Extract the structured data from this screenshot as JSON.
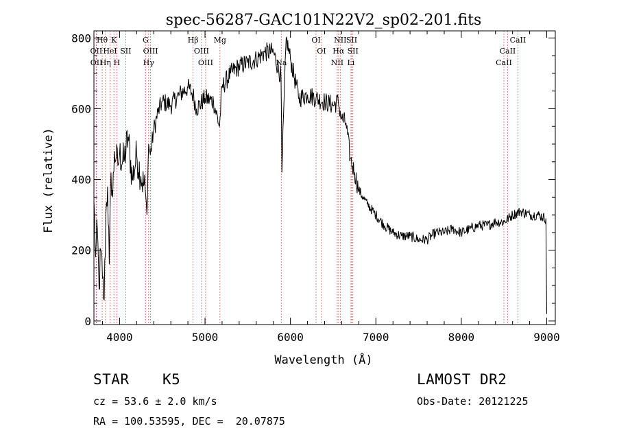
{
  "chart_data": {
    "type": "line",
    "title": "spec-56287-GAC101N22V2_sp02-201.fits",
    "xlabel": "Wavelength (Å)",
    "ylabel": "Flux (relative)",
    "xlim": [
      3700,
      9100
    ],
    "ylim": [
      -10,
      820
    ],
    "xticks": [
      4000,
      5000,
      6000,
      7000,
      8000,
      9000
    ],
    "yticks": [
      0,
      200,
      400,
      600,
      800
    ],
    "xtick_labels": [
      "4000",
      "5000",
      "6000",
      "7000",
      "8000",
      "9000"
    ],
    "ytick_labels": [
      "0",
      "200",
      "400",
      "600",
      "800"
    ],
    "grid": false,
    "series_color": "#000000",
    "line_marker_color": "#c83232",
    "spectrum": {
      "x": [
        3700,
        3720,
        3740,
        3760,
        3780,
        3800,
        3820,
        3840,
        3860,
        3880,
        3900,
        3920,
        3940,
        3960,
        3980,
        4000,
        4050,
        4100,
        4150,
        4200,
        4250,
        4300,
        4320,
        4340,
        4360,
        4400,
        4450,
        4500,
        4600,
        4700,
        4800,
        4860,
        4900,
        5000,
        5100,
        5170,
        5200,
        5300,
        5400,
        5500,
        5600,
        5700,
        5800,
        5890,
        5900,
        5950,
        6000,
        6100,
        6200,
        6300,
        6400,
        6500,
        6560,
        6600,
        6650,
        6700,
        6750,
        6800,
        6850,
        6900,
        7000,
        7100,
        7200,
        7300,
        7400,
        7500,
        7600,
        7700,
        7800,
        7900,
        8000,
        8100,
        8200,
        8300,
        8400,
        8500,
        8600,
        8700,
        8800,
        8900,
        8990,
        9000
      ],
      "y": [
        340,
        180,
        260,
        90,
        200,
        120,
        60,
        300,
        380,
        160,
        420,
        350,
        480,
        460,
        440,
        470,
        450,
        520,
        400,
        470,
        410,
        370,
        300,
        500,
        470,
        540,
        590,
        620,
        610,
        640,
        660,
        640,
        600,
        630,
        620,
        550,
        660,
        700,
        720,
        730,
        740,
        760,
        760,
        690,
        420,
        800,
        740,
        630,
        640,
        630,
        620,
        610,
        620,
        570,
        560,
        460,
        420,
        370,
        350,
        330,
        300,
        270,
        250,
        240,
        240,
        230,
        230,
        250,
        250,
        260,
        250,
        260,
        270,
        270,
        280,
        280,
        300,
        310,
        300,
        300,
        290,
        20
      ]
    },
    "line_labels": [
      {
        "label": "Hθ",
        "row": 1,
        "wavelength": 3797
      },
      {
        "label": "K",
        "row": 1,
        "wavelength": 3934
      },
      {
        "label": "G",
        "row": 1,
        "wavelength": 4305
      },
      {
        "label": "Hβ",
        "row": 1,
        "wavelength": 4861
      },
      {
        "label": "Mg",
        "row": 1,
        "wavelength": 5175
      },
      {
        "label": "OI",
        "row": 1,
        "wavelength": 6300
      },
      {
        "label": "NII",
        "row": 1,
        "wavelength": 6583
      },
      {
        "label": "SII",
        "row": 1,
        "wavelength": 6717
      },
      {
        "label": "CaII",
        "row": 1,
        "wavelength": 8662
      },
      {
        "label": "OII",
        "row": 2,
        "wavelength": 3727
      },
      {
        "label": "HeI",
        "row": 2,
        "wavelength": 3889
      },
      {
        "label": "SII",
        "row": 2,
        "wavelength": 4072
      },
      {
        "label": "OIII",
        "row": 2,
        "wavelength": 4363
      },
      {
        "label": "OIII",
        "row": 2,
        "wavelength": 4959
      },
      {
        "label": "OI",
        "row": 2,
        "wavelength": 6363
      },
      {
        "label": "Hα",
        "row": 2,
        "wavelength": 6563
      },
      {
        "label": "SII",
        "row": 2,
        "wavelength": 6731
      },
      {
        "label": "CaII",
        "row": 2,
        "wavelength": 8542
      },
      {
        "label": "OII",
        "row": 3,
        "wavelength": 3729
      },
      {
        "label": "Hη",
        "row": 3,
        "wavelength": 3835
      },
      {
        "label": "H",
        "row": 3,
        "wavelength": 3968
      },
      {
        "label": "Hγ",
        "row": 3,
        "wavelength": 4340
      },
      {
        "label": "OIII",
        "row": 3,
        "wavelength": 5007
      },
      {
        "label": "Na",
        "row": 3,
        "wavelength": 5893
      },
      {
        "label": "NII",
        "row": 3,
        "wavelength": 6548
      },
      {
        "label": "Li",
        "row": 3,
        "wavelength": 6708
      },
      {
        "label": "CaII",
        "row": 3,
        "wavelength": 8498
      }
    ]
  },
  "info": {
    "object_class": "STAR",
    "subclass": "K5",
    "survey": "LAMOST DR2",
    "redshift": "cz = 53.6 ± 2.0 km/s",
    "obs_date": "Obs-Date: 20121225",
    "coords": "RA = 100.53595, DEC =  20.07875"
  }
}
